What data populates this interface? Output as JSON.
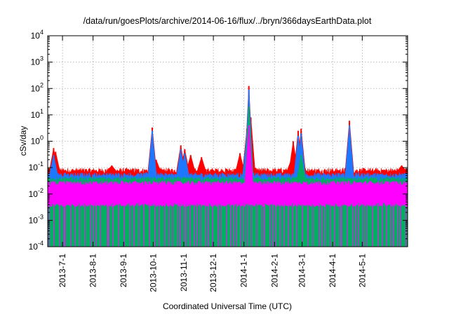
{
  "chart_data": {
    "type": "line",
    "title": "/data/run/goesPlots/archive/2014-06-16/flux/../bryn/366daysEarthData.plot",
    "xlabel": "Coordinated Universal Time (UTC)",
    "ylabel": "cSv/day",
    "yscale": "log",
    "ylim": [
      0.0001,
      10000
    ],
    "xlim": [
      "2013-06-16",
      "2014-06-16"
    ],
    "grid": true,
    "y_ticks": [
      {
        "exp": "-4",
        "value": 0.0001
      },
      {
        "exp": "-3",
        "value": 0.001
      },
      {
        "exp": "-2",
        "value": 0.01
      },
      {
        "exp": "-1",
        "value": 0.1
      },
      {
        "exp": "0",
        "value": 1
      },
      {
        "exp": "1",
        "value": 10
      },
      {
        "exp": "2",
        "value": 100
      },
      {
        "exp": "3",
        "value": 1000
      },
      {
        "exp": "4",
        "value": 10000
      }
    ],
    "x_ticks": [
      "2013-7-1",
      "2013-8-1",
      "2013-9-1",
      "2013-10-1",
      "2013-11-1",
      "2013-12-1",
      "2014-1-1",
      "2014-2-1",
      "2014-3-1",
      "2014-4-1",
      "2014-5-1"
    ],
    "series": [
      {
        "color": "#ff0000",
        "baseline": 0.075,
        "spikes": [
          {
            "x": "2013-06-22",
            "y": 0.55
          },
          {
            "x": "2013-06-24",
            "y": 0.4
          },
          {
            "x": "2013-08-20",
            "y": 0.12
          },
          {
            "x": "2013-09-30",
            "y": 3.3
          },
          {
            "x": "2013-10-04",
            "y": 0.2
          },
          {
            "x": "2013-10-29",
            "y": 0.7
          },
          {
            "x": "2013-11-02",
            "y": 0.5
          },
          {
            "x": "2013-11-08",
            "y": 0.3
          },
          {
            "x": "2013-11-19",
            "y": 0.25
          },
          {
            "x": "2013-12-28",
            "y": 0.35
          },
          {
            "x": "2014-01-04",
            "y": 3.0
          },
          {
            "x": "2014-01-06",
            "y": 125
          },
          {
            "x": "2014-01-08",
            "y": 8
          },
          {
            "x": "2014-02-18",
            "y": 0.2
          },
          {
            "x": "2014-02-20",
            "y": 1.0
          },
          {
            "x": "2014-02-25",
            "y": 2.5
          },
          {
            "x": "2014-02-28",
            "y": 3.0
          },
          {
            "x": "2014-04-18",
            "y": 6.0
          },
          {
            "x": "2014-06-10",
            "y": 0.12
          }
        ]
      },
      {
        "color": "#1e77ff",
        "baseline": 0.05,
        "spikes": [
          {
            "x": "2013-06-22",
            "y": 0.3
          },
          {
            "x": "2013-09-30",
            "y": 2.5
          },
          {
            "x": "2013-10-29",
            "y": 0.5
          },
          {
            "x": "2013-11-02",
            "y": 0.35
          },
          {
            "x": "2014-01-04",
            "y": 2.0
          },
          {
            "x": "2014-01-06",
            "y": 90
          },
          {
            "x": "2014-02-25",
            "y": 1.6
          },
          {
            "x": "2014-02-28",
            "y": 2.0
          },
          {
            "x": "2014-04-18",
            "y": 4.0
          }
        ]
      },
      {
        "color": "#00b060",
        "baseline": 0.035,
        "spikes": [
          {
            "x": "2014-01-06",
            "y": 20
          },
          {
            "x": "2014-02-28",
            "y": 0.3
          }
        ]
      },
      {
        "color": "#ff00ff",
        "baseline": 0.025,
        "floor": 0.004,
        "spikes": [
          {
            "x": "2014-01-06",
            "y": 4.0
          }
        ]
      }
    ]
  }
}
